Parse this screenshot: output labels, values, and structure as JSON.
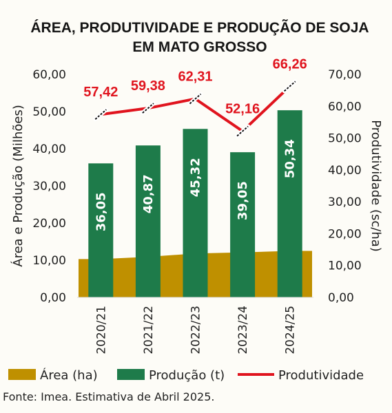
{
  "colors": {
    "area": "#bf9000",
    "production": "#1e7b4a",
    "productivity": "#e0141e",
    "grid": "#d9d9d9"
  },
  "chart_data": {
    "type": "bar",
    "title_lines": [
      "ÁREA, PRODUTIVIDADE E PRODUÇÃO DE SOJA",
      "EM MATO GROSSO"
    ],
    "categories": [
      "2020/21",
      "2021/22",
      "2022/23",
      "2023/24",
      "2024/25"
    ],
    "series": [
      {
        "name": "Área (ha)",
        "kind": "area",
        "axis": "left",
        "values": [
          10.3,
          10.9,
          11.8,
          12.1,
          12.5
        ]
      },
      {
        "name": "Produção (t)",
        "kind": "bar",
        "axis": "left",
        "values": [
          36.05,
          40.87,
          45.32,
          39.05,
          50.34
        ],
        "labels": [
          "36,05",
          "40,87",
          "45,32",
          "39,05",
          "50,34"
        ]
      },
      {
        "name": "Produtividade",
        "kind": "line",
        "axis": "right",
        "values": [
          57.42,
          59.38,
          62.31,
          52.16,
          66.26
        ],
        "labels": [
          "57,42",
          "59,38",
          "62,31",
          "52,16",
          "66,26"
        ]
      }
    ],
    "y_left": {
      "label": "Área e Produção (Milhões)",
      "ylim": [
        0,
        60
      ],
      "ticks": [
        "0,00",
        "10,00",
        "20,00",
        "30,00",
        "40,00",
        "50,00",
        "60,00"
      ]
    },
    "y_right": {
      "label": "Produtividade (sc/ha)",
      "ylim": [
        0,
        70
      ],
      "ticks": [
        "0,00",
        "10,00",
        "20,00",
        "30,00",
        "40,00",
        "50,00",
        "60,00",
        "70,00"
      ]
    },
    "grid": false,
    "legend_position": "bottom"
  },
  "source": "Fonte: Imea. Estimativa de Abril 2025."
}
